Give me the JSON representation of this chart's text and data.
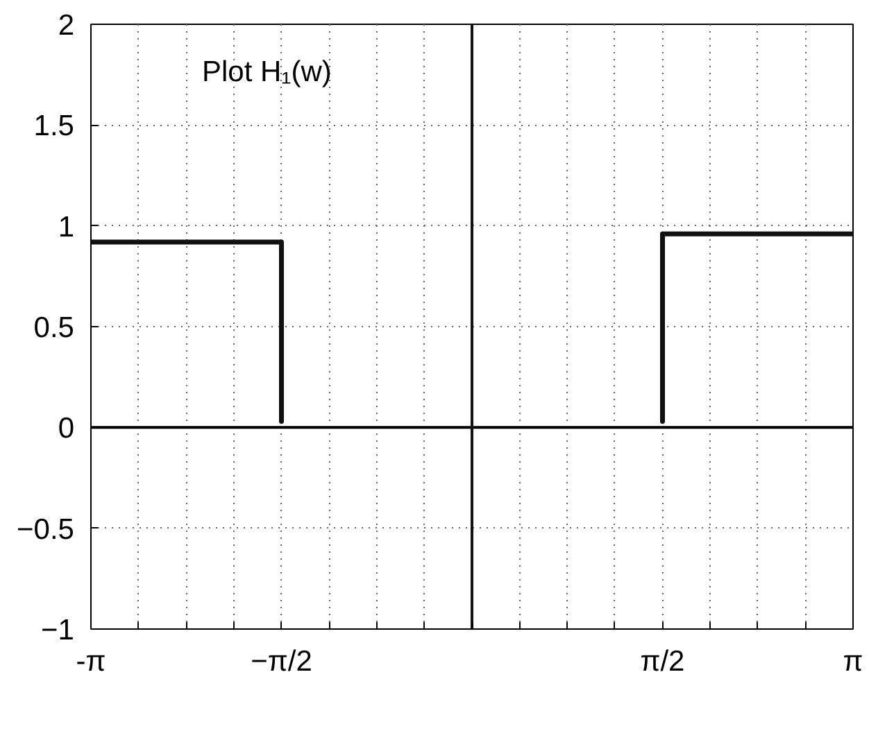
{
  "chart_data": {
    "type": "line",
    "annotations": [
      "Plot H₁(w)"
    ],
    "series": [
      {
        "color": "#111111",
        "x": [
          -3.1416,
          -1.5708,
          -1.5708
        ],
        "values": [
          0.92,
          0.92,
          0.03
        ]
      },
      {
        "color": "#111111",
        "x": [
          1.5708,
          1.5708,
          3.1416
        ],
        "values": [
          0.03,
          0.96,
          0.96
        ]
      }
    ],
    "ref_lines": [
      {
        "axis": "y",
        "value": 0,
        "color": "#000000"
      },
      {
        "axis": "x",
        "value": 0,
        "color": "#111111"
      }
    ],
    "xlim": [
      -3.1416,
      3.1416
    ],
    "xticks": [
      {
        "value": -3.1416,
        "label": "-π"
      },
      {
        "value": -2.7489,
        "label": null
      },
      {
        "value": -2.3562,
        "label": null
      },
      {
        "value": -1.9635,
        "label": null
      },
      {
        "value": -1.5708,
        "label": "−π/2"
      },
      {
        "value": -1.1781,
        "label": null
      },
      {
        "value": -0.7854,
        "label": null
      },
      {
        "value": -0.3927,
        "label": null
      },
      {
        "value": 0,
        "label": null
      },
      {
        "value": 0.3927,
        "label": null
      },
      {
        "value": 0.7854,
        "label": null
      },
      {
        "value": 1.1781,
        "label": null
      },
      {
        "value": 1.5708,
        "label": "π/2"
      },
      {
        "value": 1.9635,
        "label": null
      },
      {
        "value": 2.3562,
        "label": null
      },
      {
        "value": 2.7489,
        "label": null
      },
      {
        "value": 3.1416,
        "label": "π"
      }
    ],
    "ylim": [
      -1,
      2
    ],
    "yticks": [
      -1,
      -0.5,
      0,
      0.5,
      1,
      1.5,
      2
    ],
    "grid": true,
    "line_style": "solid"
  }
}
